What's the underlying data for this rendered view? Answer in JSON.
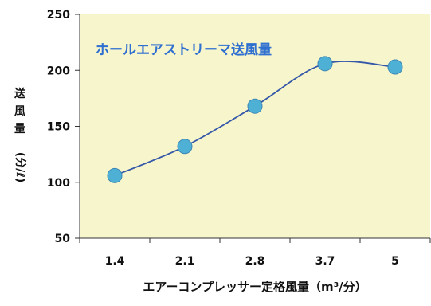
{
  "chart_data": {
    "type": "line",
    "title": "",
    "categories": [
      "1.4",
      "2.1",
      "2.8",
      "3.7",
      "5"
    ],
    "series": [
      {
        "name": "ホールエアストリーマ送風量",
        "values": [
          106,
          132,
          168,
          206,
          203
        ],
        "color": "#3558a8",
        "marker_color": "#4fb0d6"
      }
    ],
    "xlabel": "エアーコンプレッサー定格風量（m³/分）",
    "ylabel_lines": [
      "送",
      "風",
      "量"
    ],
    "ylabel_unit": "(分/ℓ)",
    "ylim": [
      50,
      250
    ],
    "yticks": [
      50,
      100,
      150,
      200,
      250
    ],
    "grid": false,
    "plot_background": "#f7f5cc",
    "annotation_color": "#2f6fd0",
    "smooth": true
  }
}
